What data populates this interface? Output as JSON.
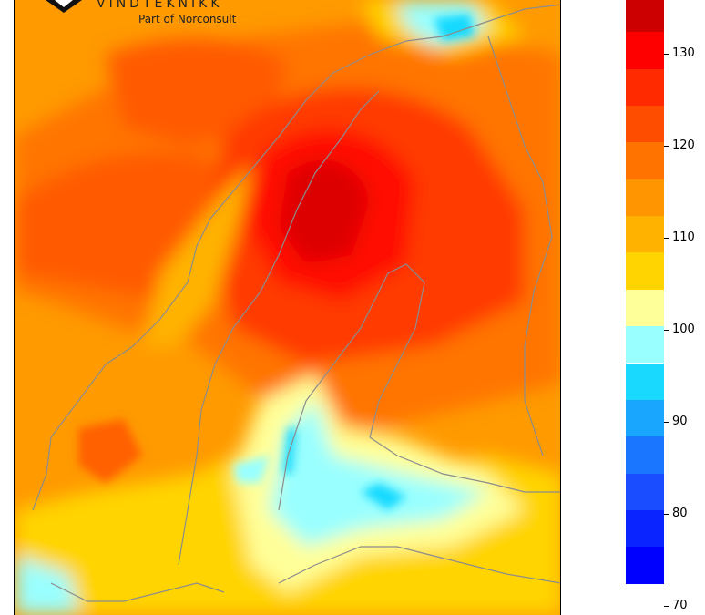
{
  "logo": {
    "brand": "VINDTEKNIKK",
    "subtitle": "Part of Norconsult"
  },
  "colorbar": {
    "levels": [
      135,
      130,
      125,
      120,
      115,
      110,
      105,
      100,
      95,
      90,
      85,
      80,
      75,
      70
    ],
    "colors": [
      "#cc0000",
      "#ff0000",
      "#ff2a00",
      "#ff4d00",
      "#ff7400",
      "#ff9500",
      "#ffb300",
      "#ffd400",
      "#ffff99",
      "#99ffff",
      "#19d9ff",
      "#19a6ff",
      "#1a75ff",
      "#1a4dff",
      "#0a24ff",
      "#0000ff"
    ],
    "tick_labels": [
      "130",
      "120",
      "110",
      "100",
      "90",
      "80",
      "70"
    ]
  }
}
